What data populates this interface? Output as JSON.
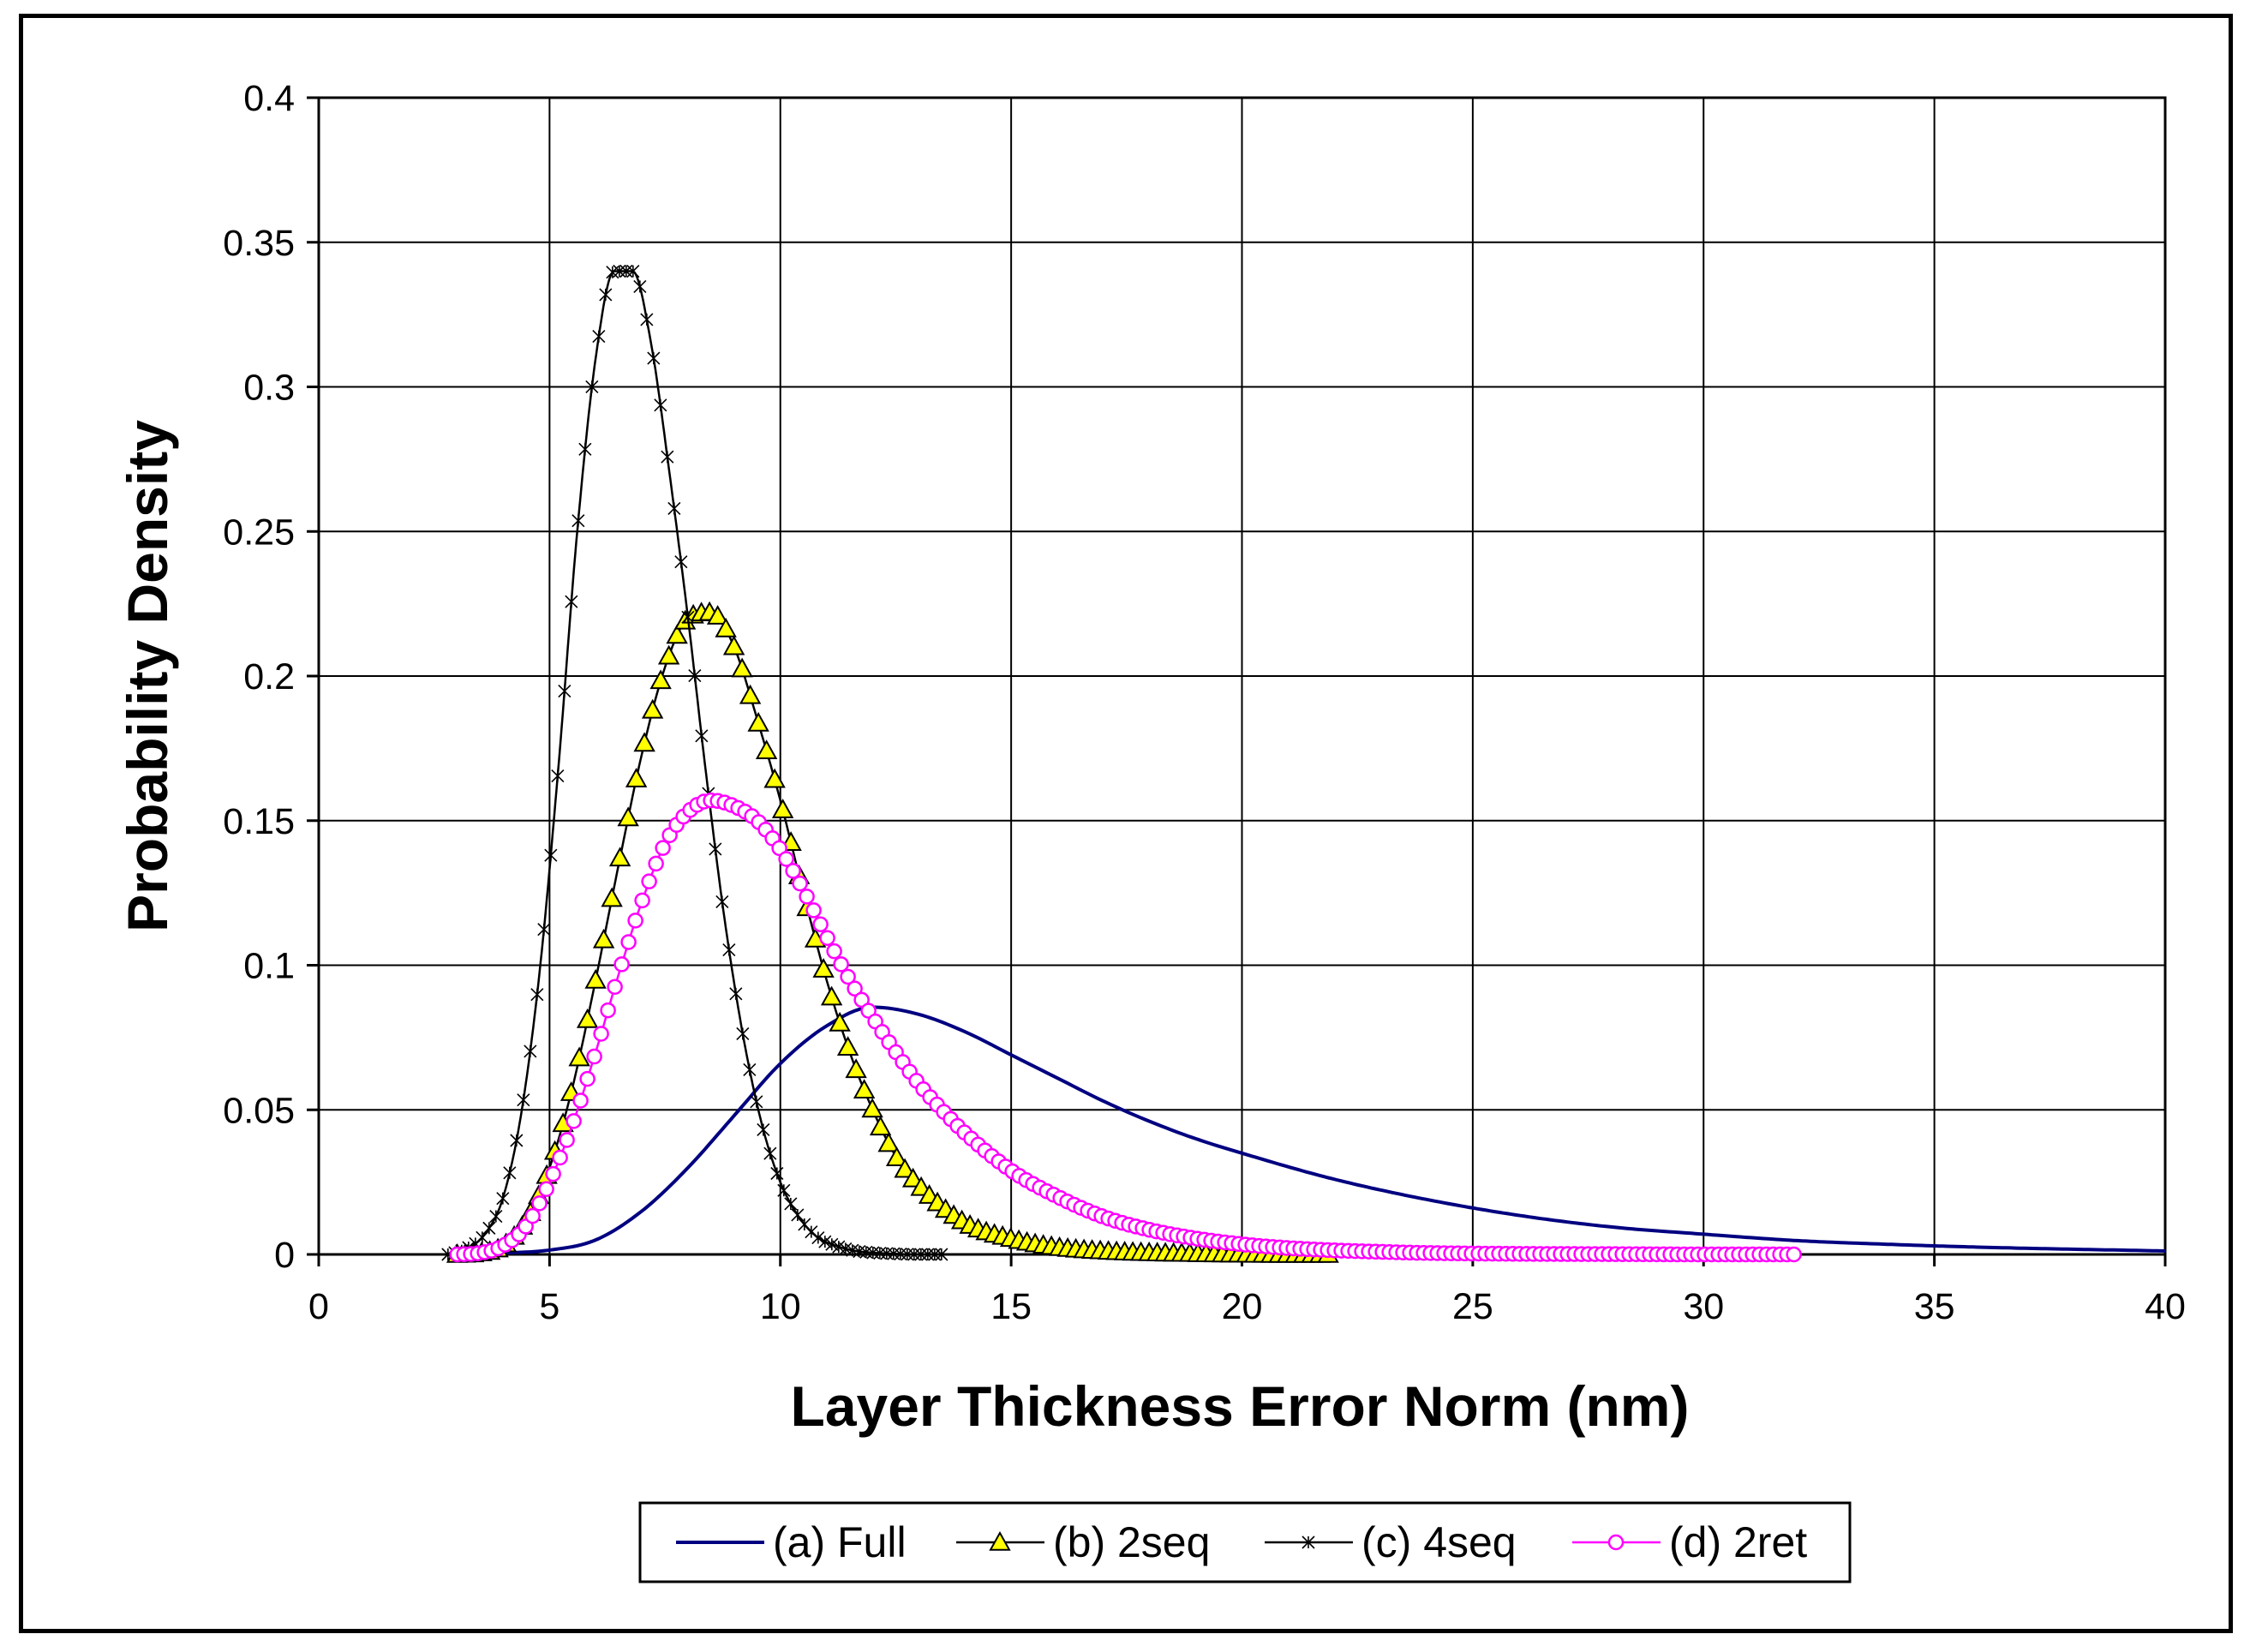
{
  "chart_data": {
    "type": "line",
    "title": "",
    "xlabel": "Layer Thickness Error Norm (nm)",
    "ylabel": "Probability Density",
    "xlim": [
      0,
      40
    ],
    "ylim": [
      0,
      0.4
    ],
    "x_ticks": [
      0,
      5,
      10,
      15,
      20,
      25,
      30,
      35,
      40
    ],
    "y_ticks": [
      0,
      0.05,
      0.1,
      0.15,
      0.2,
      0.25,
      0.3,
      0.35,
      0.4
    ],
    "x_tick_labels": [
      "0",
      "5",
      "10",
      "15",
      "20",
      "25",
      "30",
      "35",
      "40"
    ],
    "y_tick_labels": [
      "0",
      "0.05",
      "0.1",
      "0.15",
      "0.2",
      "0.25",
      "0.3",
      "0.35",
      "0.4"
    ],
    "grid": true,
    "legend_position": "bottom",
    "series": [
      {
        "name": "(a) Full",
        "color": "#000080",
        "marker": "none",
        "x": [
          3,
          4,
          5,
          6,
          7,
          8,
          9,
          10,
          11,
          12,
          13,
          14,
          15,
          16,
          17,
          18,
          19,
          20,
          22,
          24,
          26,
          28,
          30,
          32,
          34,
          36,
          38,
          40
        ],
        "y": [
          0.0,
          0.0005,
          0.0015,
          0.005,
          0.015,
          0.03,
          0.048,
          0.066,
          0.079,
          0.0855,
          0.083,
          0.077,
          0.069,
          0.061,
          0.053,
          0.046,
          0.04,
          0.035,
          0.026,
          0.019,
          0.0135,
          0.0095,
          0.007,
          0.0048,
          0.0035,
          0.0025,
          0.0018,
          0.0012
        ]
      },
      {
        "name": "(b) 2seq",
        "color": "#000000",
        "marker_fill": "#ffff00",
        "marker": "triangle",
        "x": [
          3,
          3.5,
          4,
          4.5,
          5,
          5.5,
          6,
          6.5,
          7,
          7.5,
          8,
          8.5,
          9,
          9.5,
          10,
          10.5,
          11,
          11.5,
          12,
          12.5,
          13,
          14,
          15,
          16,
          17,
          18,
          19,
          20,
          21,
          22
        ],
        "y": [
          0.0,
          0.0005,
          0.003,
          0.012,
          0.03,
          0.058,
          0.095,
          0.135,
          0.173,
          0.203,
          0.22,
          0.222,
          0.21,
          0.185,
          0.157,
          0.125,
          0.095,
          0.07,
          0.05,
          0.034,
          0.024,
          0.011,
          0.0055,
          0.0025,
          0.0012,
          0.0006,
          0.0003,
          0.0001,
          0.0,
          0.0
        ]
      },
      {
        "name": "(c) 4seq",
        "color": "#000000",
        "marker": "star",
        "x": [
          2.8,
          3.2,
          3.6,
          4.0,
          4.4,
          4.8,
          5.2,
          5.6,
          6.0,
          6.4,
          6.8,
          7.2,
          7.6,
          8.0,
          8.4,
          8.8,
          9.2,
          9.6,
          10.0,
          10.4,
          10.8,
          11.2,
          11.6,
          12.0,
          12.5,
          13.0,
          13.5
        ],
        "y": [
          0.0,
          0.002,
          0.007,
          0.02,
          0.05,
          0.1,
          0.17,
          0.25,
          0.31,
          0.34,
          0.34,
          0.315,
          0.27,
          0.22,
          0.165,
          0.115,
          0.075,
          0.045,
          0.025,
          0.013,
          0.006,
          0.003,
          0.0013,
          0.0006,
          0.0002,
          0.0,
          0.0
        ]
      },
      {
        "name": "(d) 2ret",
        "color": "#ff00ff",
        "marker": "circle",
        "x": [
          3,
          3.5,
          4,
          4.5,
          5,
          5.5,
          6,
          6.5,
          7,
          7.5,
          8,
          8.5,
          9,
          9.5,
          10,
          10.5,
          11,
          11.5,
          12,
          12.5,
          13,
          13.5,
          14,
          15,
          16,
          17,
          18,
          19,
          20,
          21,
          22,
          23,
          24,
          26,
          28,
          30,
          32
        ],
        "y": [
          0.0,
          0.0005,
          0.003,
          0.01,
          0.025,
          0.045,
          0.07,
          0.097,
          0.122,
          0.142,
          0.153,
          0.157,
          0.155,
          0.15,
          0.14,
          0.126,
          0.11,
          0.095,
          0.082,
          0.07,
          0.059,
          0.05,
          0.042,
          0.029,
          0.02,
          0.013,
          0.0085,
          0.0055,
          0.0035,
          0.0022,
          0.0014,
          0.0009,
          0.0005,
          0.0002,
          0.0001,
          0.0,
          0.0
        ]
      }
    ]
  }
}
